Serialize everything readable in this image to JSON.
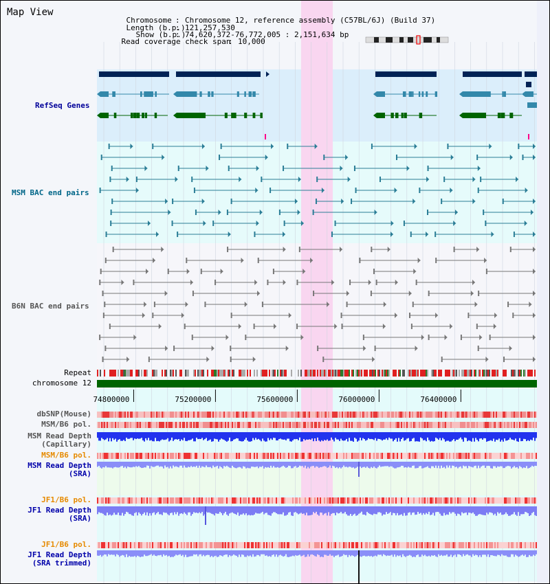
{
  "title": "Map View",
  "info": {
    "chromosome_label": "Chromosome",
    "chromosome_value": "Chromosome 12, reference assembly (C57BL/6J) (Build 37)",
    "length_label": "Length (b.p.)",
    "length_value": "121,257,530",
    "show_label": "Show (b.p.)",
    "show_value": "74,620,372-76,772,005 : 2,151,634 bp",
    "coverage_label": "Read coverage check span",
    "coverage_value": "10,000",
    "sep": ":"
  },
  "axis": {
    "ticks": [
      "74800000",
      "75200000",
      "75600000",
      "76000000",
      "76400000"
    ],
    "tick_values": [
      74800000,
      75200000,
      75600000,
      76000000,
      76400000
    ],
    "view_start": 74620372,
    "view_end": 76772005
  },
  "tracks": {
    "refseq": "RefSeq Genes",
    "msm_bac": "MSM BAC end pairs",
    "b6n_bac": "B6N BAC end pairs",
    "repeat": "Repeat",
    "chromosome": "chromosome 12",
    "dbsnp": "dbSNP(Mouse)",
    "msm_b6_pol_1": "MSM/B6 pol.",
    "msm_depth_cap_1": "MSM Read Depth",
    "msm_depth_cap_2": "(Capillary)",
    "msm_b6_pol_2": "MSM/B6 pol.",
    "msm_depth_sra_1": "MSM Read Depth",
    "msm_depth_sra_2": "(SRA)",
    "jf1_b6_pol_1": "JF1/B6 pol.",
    "jf1_depth_sra_1": "JF1 Read Depth",
    "jf1_depth_sra_2": "(SRA)",
    "jf1_b6_pol_2": "JF1/B6 pol.",
    "jf1_depth_trim_1": "JF1 Read Depth",
    "jf1_depth_trim_2": "(SRA trimmed)"
  },
  "colors": {
    "refseq_label": "#000099",
    "msm_bac_label": "#006688",
    "b6n_bac_label": "#555555",
    "msm_track_label": "#0000aa",
    "orange_label": "#e68a00",
    "highlight": "#f9d6f0",
    "chromosome_bar": "#006400",
    "gene_navy": "#002255",
    "gene_teal": "#3388aa",
    "gene_green": "#006400"
  }
}
